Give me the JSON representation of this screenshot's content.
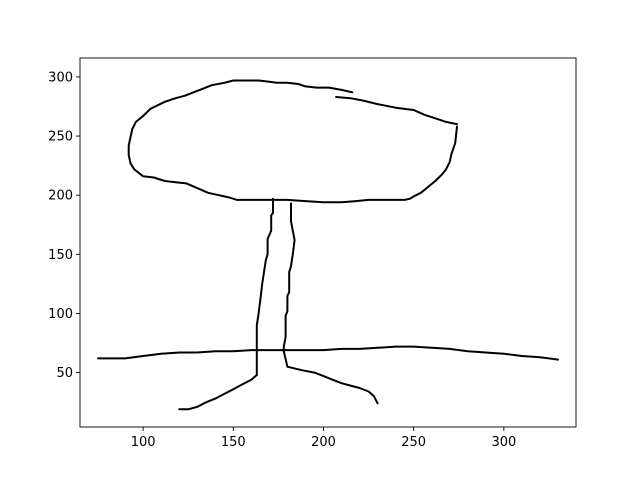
{
  "chart_data": {
    "type": "line",
    "title": "",
    "xlabel": "",
    "ylabel": "",
    "xlim": [
      65,
      340
    ],
    "ylim": [
      4,
      316
    ],
    "xticks": [
      100,
      150,
      200,
      250,
      300
    ],
    "yticks": [
      50,
      100,
      150,
      200,
      250,
      300
    ],
    "xtick_labels": [
      "100",
      "150",
      "200",
      "250",
      "300"
    ],
    "ytick_labels": [
      "50",
      "100",
      "150",
      "200",
      "250",
      "300"
    ],
    "grid": false,
    "legend": "none",
    "line_color": "#000000",
    "series": [
      {
        "x": [
          216,
          210,
          203,
          196,
          190,
          186,
          180,
          174,
          170,
          164,
          157,
          150,
          145,
          138,
          133,
          128,
          123,
          118,
          112,
          108,
          104,
          100,
          96,
          94,
          93,
          92,
          92,
          93,
          95,
          100,
          106,
          112,
          118,
          124,
          130,
          136,
          142,
          148,
          152,
          158,
          170,
          180,
          190,
          200,
          210,
          218,
          225,
          230,
          238,
          245,
          248,
          250,
          254,
          258,
          262,
          266,
          268,
          270,
          271,
          273,
          274
        ],
        "y": [
          287,
          289,
          291,
          291,
          292,
          294,
          295,
          295,
          296,
          297,
          297,
          297,
          295,
          293,
          290,
          287,
          284,
          282,
          279,
          276,
          273,
          267,
          262,
          256,
          249,
          242,
          234,
          227,
          222,
          216,
          215,
          212,
          211,
          210,
          206,
          202,
          200,
          198,
          196,
          196,
          196,
          196,
          195,
          194,
          194,
          195,
          196,
          196,
          196,
          196,
          197,
          199,
          202,
          207,
          212,
          218,
          222,
          228,
          235,
          244,
          258
        ]
      },
      {
        "x": [
          207,
          215,
          222,
          230,
          240,
          250,
          256,
          262,
          268,
          274
        ],
        "y": [
          283,
          282,
          280,
          277,
          274,
          272,
          268,
          265,
          262,
          260
        ]
      },
      {
        "x": [
          172,
          172,
          171,
          171,
          169,
          169,
          168,
          167,
          166,
          165,
          164,
          163,
          163,
          163
        ],
        "y": [
          197,
          185,
          183,
          170,
          163,
          150,
          145,
          135,
          125,
          112,
          100,
          90,
          75,
          48
        ]
      },
      {
        "x": [
          182,
          182,
          183,
          184,
          183,
          182,
          181,
          181,
          180,
          180,
          179,
          179,
          178,
          178
        ],
        "y": [
          193,
          178,
          170,
          162,
          150,
          140,
          135,
          118,
          115,
          102,
          98,
          80,
          72,
          68
        ]
      },
      {
        "x": [
          75,
          80,
          90,
          100,
          110,
          120,
          130,
          140,
          150,
          160,
          170,
          180,
          190,
          200,
          210,
          220,
          230,
          240,
          250,
          260,
          270,
          280,
          290,
          300,
          310,
          320,
          325,
          330
        ],
        "y": [
          62,
          62,
          62,
          64,
          66,
          67,
          67,
          68,
          68,
          69,
          69,
          69,
          69,
          69,
          70,
          70,
          71,
          72,
          72,
          71,
          70,
          68,
          67,
          66,
          64,
          63,
          62,
          61
        ]
      },
      {
        "x": [
          163,
          160,
          155,
          150,
          145,
          140,
          135,
          130,
          125,
          120
        ],
        "y": [
          48,
          44,
          40,
          36,
          32,
          28,
          25,
          21,
          19,
          19
        ]
      },
      {
        "x": [
          178,
          180,
          188,
          195,
          200,
          205,
          210,
          215,
          220,
          225,
          228,
          230
        ],
        "y": [
          68,
          55,
          52,
          50,
          47,
          44,
          41,
          39,
          37,
          34,
          30,
          24
        ]
      }
    ]
  }
}
